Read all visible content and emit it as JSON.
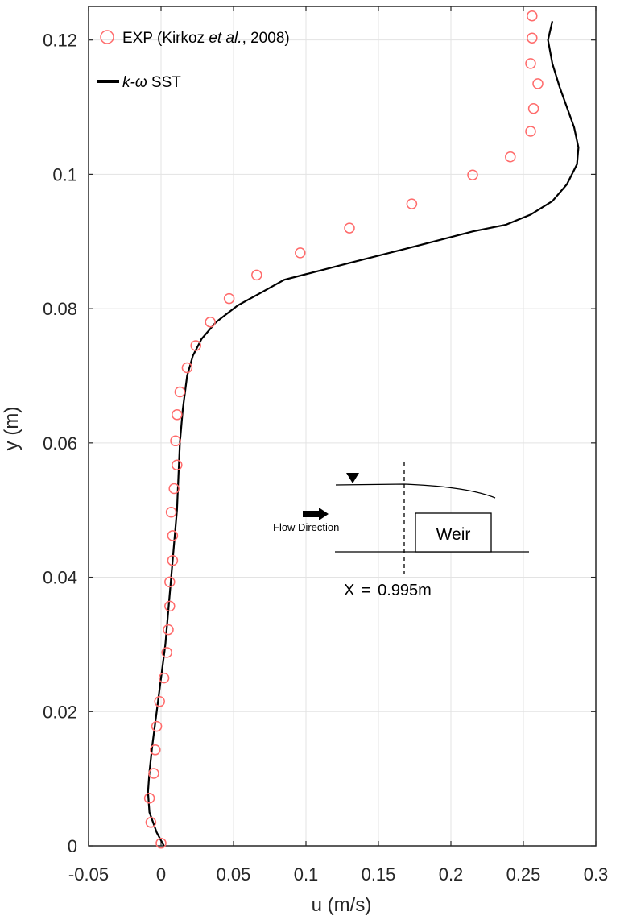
{
  "chart_data": {
    "type": "scatter",
    "xlabel": "u (m/s)",
    "ylabel": "y (m)",
    "xlim": [
      -0.05,
      0.3
    ],
    "ylim": [
      0,
      0.125
    ],
    "xticks": [
      -0.05,
      0,
      0.05,
      0.1,
      0.15,
      0.2,
      0.25,
      0.3
    ],
    "xtick_labels": [
      "-0.05",
      "0",
      "0.05",
      "0.1",
      "0.15",
      "0.2",
      "0.25",
      "0.3"
    ],
    "yticks": [
      0,
      0.02,
      0.04,
      0.06,
      0.08,
      0.1,
      0.12
    ],
    "ytick_labels": [
      "0",
      "0.02",
      "0.04",
      "0.06",
      "0.08",
      "0.1",
      "0.12"
    ],
    "grid": true,
    "legend_position": "top-left",
    "series": [
      {
        "name": "EXP (Kirkoz et al., 2008)",
        "legend": {
          "prefix": "EXP (Kirkoz ",
          "italic": "et al.",
          "suffix": ", 2008)"
        },
        "marker": "open-circle",
        "color": "#ff6b6b",
        "points": [
          [
            0.0,
            0.0004
          ],
          [
            -0.007,
            0.0035
          ],
          [
            -0.008,
            0.0071
          ],
          [
            -0.005,
            0.0108
          ],
          [
            -0.004,
            0.0143
          ],
          [
            -0.003,
            0.0178
          ],
          [
            -0.001,
            0.0215
          ],
          [
            0.002,
            0.025
          ],
          [
            0.004,
            0.0288
          ],
          [
            0.005,
            0.0322
          ],
          [
            0.006,
            0.0357
          ],
          [
            0.006,
            0.0393
          ],
          [
            0.008,
            0.0425
          ],
          [
            0.008,
            0.0462
          ],
          [
            0.007,
            0.0497
          ],
          [
            0.009,
            0.0532
          ],
          [
            0.011,
            0.0567
          ],
          [
            0.01,
            0.0603
          ],
          [
            0.011,
            0.0642
          ],
          [
            0.013,
            0.0676
          ],
          [
            0.018,
            0.0712
          ],
          [
            0.024,
            0.0745
          ],
          [
            0.034,
            0.078
          ],
          [
            0.047,
            0.0815
          ],
          [
            0.066,
            0.085
          ],
          [
            0.096,
            0.0883
          ],
          [
            0.13,
            0.092
          ],
          [
            0.173,
            0.0956
          ],
          [
            0.215,
            0.0999
          ],
          [
            0.241,
            0.1026
          ],
          [
            0.255,
            0.1064
          ],
          [
            0.257,
            0.1098
          ],
          [
            0.26,
            0.1135
          ],
          [
            0.255,
            0.1165
          ],
          [
            0.256,
            0.1203
          ],
          [
            0.256,
            0.1236
          ]
        ]
      },
      {
        "name": "k-ω SST",
        "legend": {
          "italic": "k-ω",
          "suffix": " SST"
        },
        "line": "solid",
        "color": "#000000",
        "points": [
          [
            0.002,
            0.0
          ],
          [
            -0.003,
            0.002
          ],
          [
            -0.008,
            0.005
          ],
          [
            -0.009,
            0.008
          ],
          [
            -0.008,
            0.011
          ],
          [
            -0.006,
            0.015
          ],
          [
            -0.003,
            0.02
          ],
          [
            0.0,
            0.025
          ],
          [
            0.003,
            0.03
          ],
          [
            0.005,
            0.035
          ],
          [
            0.007,
            0.04
          ],
          [
            0.009,
            0.045
          ],
          [
            0.011,
            0.05
          ],
          [
            0.012,
            0.055
          ],
          [
            0.013,
            0.06
          ],
          [
            0.015,
            0.065
          ],
          [
            0.018,
            0.07
          ],
          [
            0.022,
            0.073
          ],
          [
            0.028,
            0.0755
          ],
          [
            0.038,
            0.078
          ],
          [
            0.053,
            0.0805
          ],
          [
            0.07,
            0.0825
          ],
          [
            0.085,
            0.0843
          ],
          [
            0.13,
            0.0868
          ],
          [
            0.172,
            0.0891
          ],
          [
            0.192,
            0.0902
          ],
          [
            0.215,
            0.0915
          ],
          [
            0.238,
            0.0925
          ],
          [
            0.255,
            0.094
          ],
          [
            0.27,
            0.096
          ],
          [
            0.28,
            0.0985
          ],
          [
            0.287,
            0.1015
          ],
          [
            0.288,
            0.104
          ],
          [
            0.285,
            0.107
          ],
          [
            0.28,
            0.11
          ],
          [
            0.275,
            0.113
          ],
          [
            0.27,
            0.1165
          ],
          [
            0.267,
            0.12
          ],
          [
            0.27,
            0.1228
          ]
        ]
      }
    ]
  },
  "inset": {
    "flow_label": "Flow Direction",
    "weir_label": "Weir",
    "x_label": "X = 0.995m"
  }
}
